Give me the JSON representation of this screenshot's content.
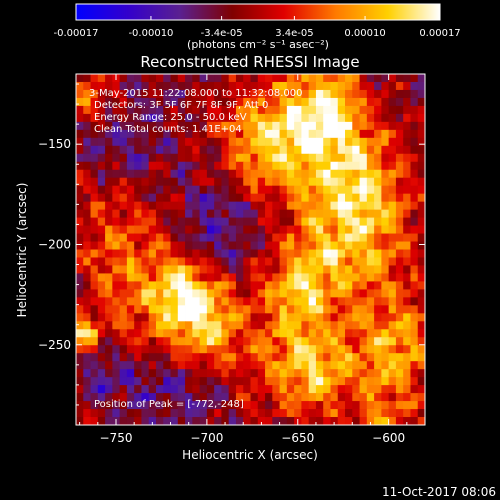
{
  "chart_data": {
    "type": "heatmap",
    "title": "Reconstructed RHESSI Image",
    "xlabel": "Heliocentric X (arcsec)",
    "ylabel": "Heliocentric Y (arcsec)",
    "xlim": [
      -772,
      -580
    ],
    "ylim": [
      -290,
      -115
    ],
    "x_ticks": [
      -750,
      -700,
      -650,
      -600
    ],
    "y_ticks": [
      -150,
      -200,
      -250
    ],
    "colorbar": {
      "range": [
        -0.00017,
        0.00017
      ],
      "ticks": [
        {
          "value": -0.00017,
          "label": "-0.00017"
        },
        {
          "value": -0.0001,
          "label": "-0.00010"
        },
        {
          "value": -3.4e-05,
          "label": "-3.4e-05"
        },
        {
          "value": 3.4e-05,
          "label": "3.4e-05"
        },
        {
          "value": 0.0001,
          "label": "0.00010"
        },
        {
          "value": 0.00017,
          "label": "0.00017"
        }
      ],
      "unit_label": "(photons cm⁻² s⁻¹ asec⁻²)",
      "colormap": [
        "#0000ff",
        "#3300cc",
        "#5a2090",
        "#800000",
        "#e00000",
        "#ff7a00",
        "#ffd000",
        "#ffffff"
      ]
    },
    "annotations": {
      "time": "3-May-2015 11:22:08.000 to 11:32:08.000",
      "detectors": "Detectors: 3F 5F 6F 7F 8F 9F, Att 0",
      "energy": "Energy Range: 25.0 - 50.0 keV",
      "clean": "Clean    Total counts: 1.41E+04",
      "peak": "Position of Peak = [-772,-248]"
    },
    "image": {
      "grid": [
        48,
        44
      ],
      "background": "#5a2a9a",
      "sources": [
        {
          "x": -745,
          "y": -210,
          "amp": 0.55,
          "sx": 18,
          "sy": 35
        },
        {
          "x": -700,
          "y": -238,
          "amp": 0.9,
          "sx": 15,
          "sy": 18
        },
        {
          "x": -715,
          "y": -225,
          "amp": 0.7,
          "sx": 12,
          "sy": 14
        },
        {
          "x": -665,
          "y": -150,
          "amp": 0.95,
          "sx": 22,
          "sy": 20
        },
        {
          "x": -635,
          "y": -130,
          "amp": 0.8,
          "sx": 14,
          "sy": 14
        },
        {
          "x": -650,
          "y": -225,
          "amp": 0.85,
          "sx": 16,
          "sy": 22
        },
        {
          "x": -615,
          "y": -195,
          "amp": 0.8,
          "sx": 20,
          "sy": 22
        },
        {
          "x": -640,
          "y": -265,
          "amp": 0.7,
          "sx": 24,
          "sy": 14
        },
        {
          "x": -595,
          "y": -250,
          "amp": 0.7,
          "sx": 14,
          "sy": 18
        },
        {
          "x": -620,
          "y": -160,
          "amp": 0.6,
          "sx": 18,
          "sy": 18
        },
        {
          "x": -600,
          "y": -290,
          "amp": 0.45,
          "sx": 12,
          "sy": 10
        },
        {
          "x": -768,
          "y": -245,
          "amp": 0.85,
          "sx": 5,
          "sy": 5
        },
        {
          "x": -765,
          "y": -125,
          "amp": 0.6,
          "sx": 10,
          "sy": 8
        },
        {
          "x": -690,
          "y": -190,
          "amp": -0.35,
          "sx": 22,
          "sy": 30
        },
        {
          "x": -745,
          "y": -150,
          "amp": -0.3,
          "sx": 16,
          "sy": 18
        },
        {
          "x": -720,
          "y": -270,
          "amp": -0.3,
          "sx": 20,
          "sy": 18
        },
        {
          "x": -755,
          "y": -265,
          "amp": -0.35,
          "sx": 10,
          "sy": 10
        }
      ]
    }
  },
  "timestamp": "11-Oct-2017 08:06"
}
